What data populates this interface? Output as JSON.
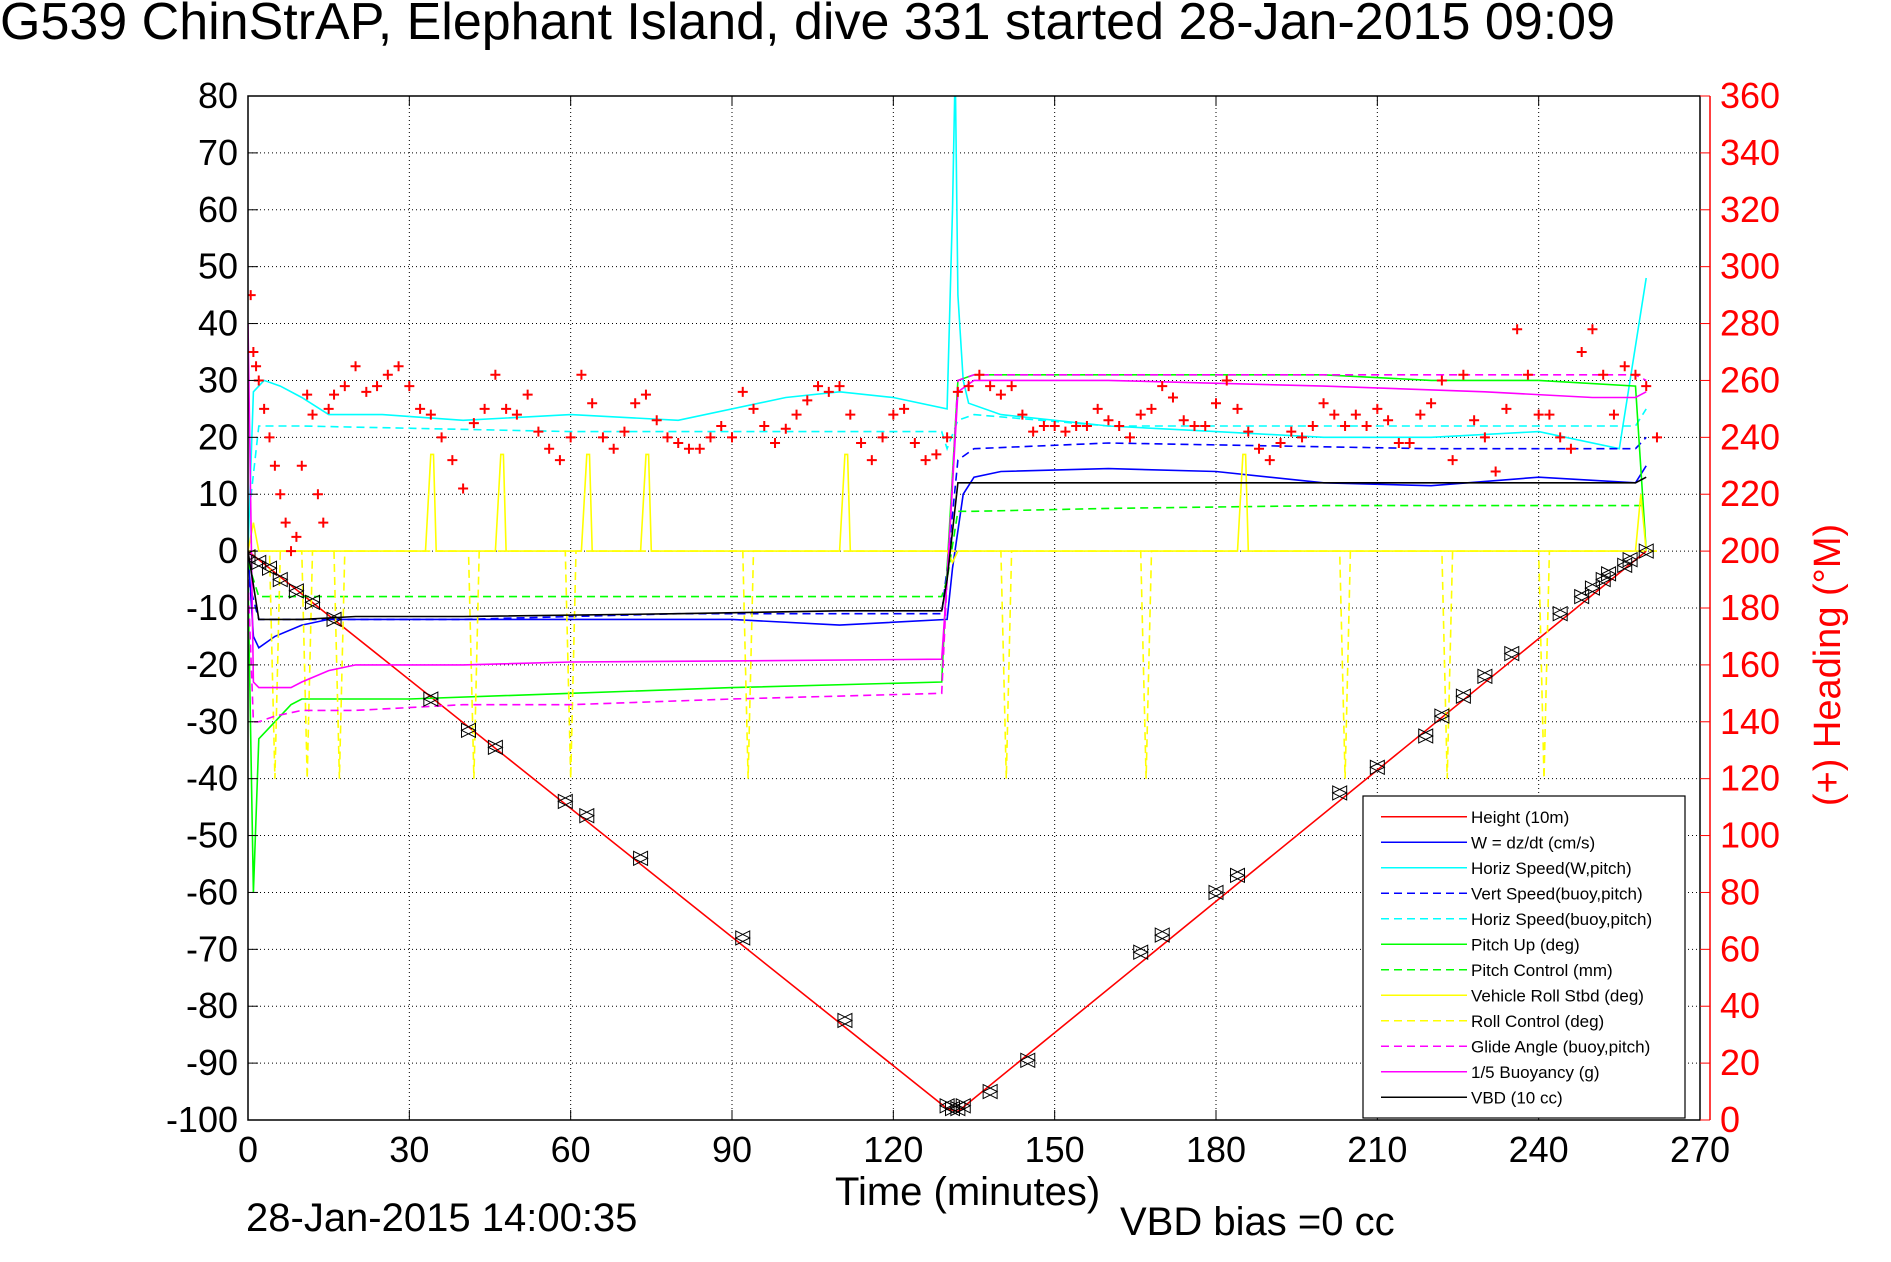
{
  "title": "G539 ChinStrAP, Elephant Island, dive 331 started 28-Jan-2015 09:09",
  "timestamp": "28-Jan-2015 14:00:35",
  "footer_note": "VBD bias =0 cc",
  "chart_data": {
    "type": "line",
    "xlabel": "Time (minutes)",
    "ylabel": "",
    "y2label": "(+) Heading (°M)",
    "xlim": [
      0,
      270
    ],
    "ylim": [
      -100,
      80
    ],
    "y2lim": [
      0,
      360
    ],
    "xticks": [
      0,
      30,
      60,
      90,
      120,
      150,
      180,
      210,
      240,
      270
    ],
    "yticks": [
      -100,
      -90,
      -80,
      -70,
      -60,
      -50,
      -40,
      -30,
      -20,
      -10,
      0,
      10,
      20,
      30,
      40,
      50,
      60,
      70,
      80
    ],
    "y2ticks": [
      0,
      20,
      40,
      60,
      80,
      100,
      120,
      140,
      160,
      180,
      200,
      220,
      240,
      260,
      280,
      300,
      320,
      340,
      360
    ],
    "grid": true,
    "legend_position": "bottom-right",
    "colors": {
      "heading": "#ff0000",
      "right_axis": "#ff0000"
    },
    "series": [
      {
        "name": "Height (10m)",
        "color": "#ff0000",
        "dash": "solid",
        "x": [
          0,
          130,
          132,
          260
        ],
        "y": [
          0,
          -98,
          -98.5,
          0
        ]
      },
      {
        "name": "W = dz/dt (cm/s)",
        "color": "#0000ff",
        "dash": "solid",
        "x": [
          0,
          1,
          2,
          5,
          10,
          15,
          20,
          40,
          60,
          90,
          110,
          130,
          131,
          133,
          135,
          140,
          160,
          180,
          200,
          220,
          240,
          258,
          260
        ],
        "y": [
          0,
          -15,
          -17,
          -15,
          -13,
          -12,
          -12,
          -12,
          -12,
          -12,
          -13,
          -12,
          -3,
          10,
          13,
          14,
          14.5,
          14,
          12,
          11.5,
          13,
          12,
          15
        ]
      },
      {
        "name": "Horiz Speed(W,pitch)",
        "color": "#00ffff",
        "dash": "solid",
        "x": [
          0,
          1,
          3,
          6,
          10,
          15,
          25,
          40,
          60,
          80,
          100,
          110,
          120,
          130,
          131,
          131.5,
          132,
          133,
          134,
          140,
          160,
          180,
          200,
          220,
          240,
          255,
          260
        ],
        "y": [
          0,
          28,
          30,
          29,
          27,
          24,
          24,
          23,
          24,
          23,
          27,
          28,
          27,
          25,
          60,
          85,
          45,
          30,
          26,
          24,
          22,
          21,
          20,
          20,
          21,
          18,
          48
        ]
      },
      {
        "name": "Vert Speed(buoy,pitch)",
        "color": "#0000ff",
        "dash": "dashed",
        "x": [
          0,
          2,
          10,
          40,
          80,
          129,
          130,
          132,
          135,
          160,
          220,
          258,
          260
        ],
        "y": [
          -5,
          -12,
          -12,
          -12,
          -11,
          -11,
          -3,
          16,
          18,
          19,
          18,
          18,
          20
        ]
      },
      {
        "name": "Horiz Speed(buoy,pitch)",
        "color": "#00ffff",
        "dash": "dashed",
        "x": [
          0,
          2,
          10,
          60,
          129,
          130,
          132,
          135,
          160,
          220,
          258,
          260
        ],
        "y": [
          5,
          22,
          22,
          21,
          21,
          18,
          23,
          24,
          22,
          22,
          22,
          25
        ]
      },
      {
        "name": "Pitch Up (deg)",
        "color": "#00ff00",
        "dash": "solid",
        "x": [
          0,
          1,
          2,
          5,
          8,
          10,
          15,
          30,
          60,
          90,
          129,
          130,
          132,
          135,
          160,
          180,
          200,
          220,
          240,
          258,
          260
        ],
        "y": [
          -5,
          -60,
          -33,
          -30,
          -27,
          -26,
          -26,
          -26,
          -25,
          -24,
          -23,
          -3,
          30,
          31,
          31,
          31,
          31,
          30,
          30,
          29,
          0
        ]
      },
      {
        "name": "Pitch Control (mm)",
        "color": "#00ff00",
        "dash": "dashed",
        "x": [
          0,
          2,
          10,
          129,
          130,
          132,
          135,
          160,
          200,
          258,
          260
        ],
        "y": [
          -2,
          -8,
          -8,
          -8,
          -5,
          7,
          7,
          7.5,
          8,
          8,
          8
        ]
      },
      {
        "name": "Vehicle Roll Stbd (deg)",
        "color": "#ffff00",
        "dash": "solid",
        "x": [
          0,
          1,
          2,
          33,
          34,
          34.5,
          35,
          46,
          47,
          47.5,
          48,
          62,
          63,
          63.5,
          64,
          73,
          74,
          74.5,
          75,
          110,
          111,
          111.5,
          112,
          130,
          131,
          132,
          184,
          185,
          185.5,
          186,
          258,
          259,
          260
        ],
        "y": [
          0,
          5,
          0,
          0,
          17,
          17,
          0,
          0,
          17,
          17,
          0,
          0,
          17,
          17,
          0,
          0,
          17,
          17,
          0,
          0,
          17,
          17,
          0,
          0,
          -2,
          0,
          0,
          17,
          17,
          0,
          0,
          10,
          0
        ]
      },
      {
        "name": "Roll Control (deg)",
        "color": "#ffff00",
        "dash": "dashed",
        "x": [
          0,
          4,
          5,
          6,
          10,
          11,
          12,
          16,
          17,
          18,
          41,
          42,
          43,
          59,
          60,
          61,
          92,
          93,
          94,
          130,
          140,
          141,
          142,
          166,
          167,
          168,
          203,
          204,
          205,
          222,
          223,
          224,
          240,
          241,
          242,
          262
        ],
        "y": [
          0,
          0,
          -40,
          0,
          0,
          -40,
          0,
          0,
          -40,
          0,
          0,
          -40,
          0,
          0,
          -40,
          0,
          0,
          -40,
          0,
          0,
          0,
          -40,
          0,
          0,
          -40,
          0,
          0,
          -40,
          0,
          0,
          -40,
          0,
          0,
          -40,
          0,
          0
        ]
      },
      {
        "name": "Glide Angle (buoy,pitch)",
        "color": "#ff00ff",
        "dash": "dashed",
        "x": [
          0,
          1,
          2,
          5,
          10,
          20,
          40,
          60,
          90,
          129,
          130,
          132,
          135,
          160,
          200,
          240,
          258,
          260
        ],
        "y": [
          -5,
          -30,
          -30,
          -29,
          -28,
          -28,
          -27,
          -27,
          -26,
          -25,
          -5,
          30,
          31,
          31,
          31,
          31,
          31,
          30
        ]
      },
      {
        "name": "1/5 Buoyancy (g)",
        "color": "#ff00ff",
        "dash": "solid",
        "x": [
          0,
          1,
          2,
          8,
          10,
          15,
          20,
          40,
          60,
          90,
          129,
          130,
          132,
          135,
          160,
          200,
          230,
          250,
          258,
          260
        ],
        "y": [
          40,
          -23,
          -24,
          -24,
          -23,
          -21,
          -20,
          -20,
          -19.5,
          -19.3,
          -19,
          -5,
          28,
          30,
          30,
          29,
          28,
          27,
          27,
          28
        ]
      },
      {
        "name": "VBD (10 cc)",
        "color": "#000000",
        "dash": "solid",
        "x": [
          0,
          2,
          3,
          10,
          20,
          40,
          80,
          110,
          129,
          130,
          132,
          135,
          160,
          200,
          240,
          258,
          260
        ],
        "y": [
          0,
          -12,
          -12,
          -12,
          -11.5,
          -11.5,
          -11,
          -10.5,
          -10.5,
          -5,
          12,
          12,
          12,
          12,
          12,
          12,
          13
        ]
      }
    ],
    "heading": {
      "name": "Heading (+)",
      "color": "#ff0000",
      "marker": "+",
      "x": [
        0.5,
        1,
        1.5,
        2,
        3,
        4,
        5,
        6,
        7,
        8,
        9,
        10,
        11,
        12,
        13,
        14,
        15,
        16,
        18,
        20,
        22,
        24,
        26,
        28,
        30,
        32,
        34,
        36,
        38,
        40,
        42,
        44,
        46,
        48,
        50,
        52,
        54,
        56,
        58,
        60,
        62,
        64,
        66,
        68,
        70,
        72,
        74,
        76,
        78,
        80,
        82,
        84,
        86,
        88,
        90,
        92,
        94,
        96,
        98,
        100,
        102,
        104,
        106,
        108,
        110,
        112,
        114,
        116,
        118,
        120,
        122,
        124,
        126,
        128,
        130,
        132,
        134,
        136,
        138,
        140,
        142,
        144,
        146,
        148,
        150,
        152,
        154,
        156,
        158,
        160,
        162,
        164,
        166,
        168,
        170,
        172,
        174,
        176,
        178,
        180,
        182,
        184,
        186,
        188,
        190,
        192,
        194,
        196,
        198,
        200,
        202,
        204,
        206,
        208,
        210,
        212,
        214,
        216,
        218,
        220,
        222,
        224,
        226,
        228,
        230,
        232,
        234,
        236,
        238,
        240,
        242,
        244,
        246,
        248,
        250,
        252,
        254,
        256,
        258,
        260,
        262
      ],
      "y": [
        290,
        270,
        265,
        260,
        250,
        240,
        230,
        220,
        210,
        200,
        205,
        230,
        255,
        248,
        220,
        210,
        250,
        255,
        258,
        265,
        256,
        258,
        262,
        265,
        258,
        250,
        248,
        240,
        232,
        222,
        245,
        250,
        262,
        250,
        248,
        255,
        242,
        236,
        232,
        240,
        262,
        252,
        240,
        236,
        242,
        252,
        255,
        246,
        240,
        238,
        236,
        236,
        240,
        244,
        240,
        256,
        250,
        244,
        238,
        243,
        248,
        253,
        258,
        256,
        258,
        248,
        238,
        232,
        240,
        248,
        250,
        238,
        232,
        234,
        240,
        256,
        258,
        262,
        258,
        255,
        258,
        248,
        242,
        244,
        244,
        242,
        244,
        244,
        250,
        246,
        244,
        240,
        248,
        250,
        258,
        254,
        246,
        244,
        244,
        252,
        260,
        250,
        242,
        236,
        232,
        238,
        242,
        240,
        244,
        252,
        248,
        244,
        248,
        244,
        250,
        246,
        238,
        238,
        248,
        252,
        260,
        232,
        262,
        246,
        240,
        228,
        250,
        278,
        262,
        248,
        248,
        240,
        236,
        270,
        278,
        262,
        248,
        265,
        262,
        258,
        240
      ]
    },
    "legend": [
      "Height (10m)",
      "W = dz/dt (cm/s)",
      "Horiz Speed(W,pitch)",
      "Vert Speed(buoy,pitch)",
      "Horiz Speed(buoy,pitch)",
      "Pitch Up (deg)",
      "Pitch Control (mm)",
      "Vehicle Roll Stbd (deg)",
      "Roll Control (deg)",
      "Glide Angle (buoy,pitch)",
      "1/5 Buoyancy (g)",
      "VBD (10 cc)"
    ],
    "triangle_markers": {
      "x": [
        0,
        2,
        4,
        6,
        9,
        12,
        16,
        34,
        41,
        46,
        59,
        63,
        73,
        92,
        111,
        130,
        131,
        132,
        133,
        138,
        145,
        166,
        170,
        180,
        184,
        203,
        210,
        219,
        222,
        226,
        230,
        235,
        244,
        248,
        250,
        252,
        253,
        256,
        257,
        260
      ],
      "y": [
        -1,
        -2,
        -3,
        -5,
        -7,
        -9,
        -12,
        -26,
        -31.5,
        -34.5,
        -44,
        -46.5,
        -54,
        -68,
        -82.5,
        -97.5,
        -98,
        -98,
        -97.5,
        -95,
        -89.5,
        -70.5,
        -67.5,
        -60,
        -57,
        -42.5,
        -38,
        -32.5,
        -29,
        -25.5,
        -22,
        -18,
        -11,
        -8,
        -6.5,
        -5,
        -4,
        -2.5,
        -1.5,
        0
      ]
    }
  }
}
